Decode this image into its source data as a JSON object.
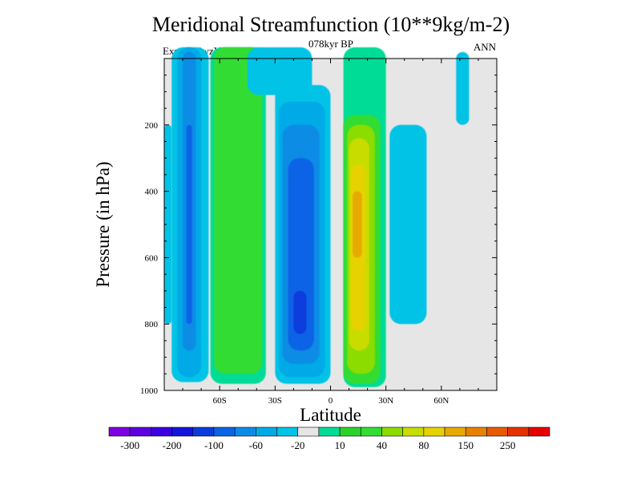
{
  "header": {
    "title": "Meridional Streamfunction (10**9kg/m-2)",
    "subtitle": "078kyr BP",
    "left_label": "Expt = tdwzY",
    "right_label": "ANN"
  },
  "chart_data": {
    "type": "heatmap",
    "xlabel": "Latitude",
    "ylabel": "Pressure (in hPa)",
    "xlim": [
      -90,
      90
    ],
    "ylim": [
      1000,
      0
    ],
    "x_ticks": [
      {
        "value": -60,
        "label": "60S"
      },
      {
        "value": -30,
        "label": "30S"
      },
      {
        "value": 0,
        "label": "0"
      },
      {
        "value": 30,
        "label": "30N"
      },
      {
        "value": 60,
        "label": "60N"
      }
    ],
    "y_ticks": [
      {
        "value": 200,
        "label": "200"
      },
      {
        "value": 400,
        "label": "400"
      },
      {
        "value": 600,
        "label": "600"
      },
      {
        "value": 800,
        "label": "800"
      },
      {
        "value": 1000,
        "label": "1000"
      }
    ],
    "background_color": "#e6e6e6",
    "colorbar": {
      "colors": [
        "#7d00e0",
        "#5f00e0",
        "#3a00e0",
        "#1414dc",
        "#0a3cdc",
        "#0a64e6",
        "#0a8ce6",
        "#00aae6",
        "#00c3e6",
        "#e6e6e6",
        "#00dc96",
        "#2ad22a",
        "#32dc32",
        "#8cdc00",
        "#c8dc00",
        "#e6d200",
        "#e6aa00",
        "#e68200",
        "#e65a00",
        "#e63200",
        "#e60000"
      ],
      "labels": [
        "-300",
        "-200",
        "-100",
        "-60",
        "-20",
        "10",
        "40",
        "80",
        "150",
        "250"
      ]
    },
    "regions": [
      {
        "lat": [
          -90,
          -86
        ],
        "p": [
          200,
          800
        ],
        "value": -10,
        "color": "#00c3e6"
      },
      {
        "lat": [
          -86,
          -66
        ],
        "p": [
          0,
          975
        ],
        "value": -20,
        "color": "#00c3e6"
      },
      {
        "lat": [
          -83,
          -70
        ],
        "p": [
          0,
          960
        ],
        "value": -40,
        "color": "#00aae6"
      },
      {
        "lat": [
          -80,
          -73
        ],
        "p": [
          0,
          880
        ],
        "value": -60,
        "color": "#0a8ce6"
      },
      {
        "lat": [
          -78,
          -75
        ],
        "p": [
          200,
          800
        ],
        "value": -80,
        "color": "#0a64e6"
      },
      {
        "lat": [
          -65,
          -35
        ],
        "p": [
          0,
          980
        ],
        "value": 10,
        "color": "#00dc96"
      },
      {
        "lat": [
          -63,
          -37
        ],
        "p": [
          0,
          950
        ],
        "value": 20,
        "color": "#32dc32"
      },
      {
        "lat": [
          -45,
          -10
        ],
        "p": [
          0,
          110
        ],
        "value": -10,
        "color": "#00c3e6"
      },
      {
        "lat": [
          -30,
          0
        ],
        "p": [
          80,
          980
        ],
        "value": -20,
        "color": "#00c3e6"
      },
      {
        "lat": [
          -28,
          -3
        ],
        "p": [
          130,
          960
        ],
        "value": -40,
        "color": "#00aae6"
      },
      {
        "lat": [
          -26,
          -6
        ],
        "p": [
          200,
          920
        ],
        "value": -60,
        "color": "#0a8ce6"
      },
      {
        "lat": [
          -23,
          -9
        ],
        "p": [
          300,
          880
        ],
        "value": -80,
        "color": "#0a64e6"
      },
      {
        "lat": [
          -20,
          -13
        ],
        "p": [
          700,
          830
        ],
        "value": -100,
        "color": "#0a3cdc"
      },
      {
        "lat": [
          7,
          30
        ],
        "p": [
          0,
          990
        ],
        "value": 10,
        "color": "#00dc96"
      },
      {
        "lat": [
          7,
          27
        ],
        "p": [
          170,
          980
        ],
        "value": 20,
        "color": "#32dc32"
      },
      {
        "lat": [
          9,
          24
        ],
        "p": [
          200,
          950
        ],
        "value": 40,
        "color": "#8cdc00"
      },
      {
        "lat": [
          10,
          21
        ],
        "p": [
          240,
          880
        ],
        "value": 60,
        "color": "#c8dc00"
      },
      {
        "lat": [
          11,
          19
        ],
        "p": [
          320,
          820
        ],
        "value": 80,
        "color": "#e6d200"
      },
      {
        "lat": [
          12,
          17
        ],
        "p": [
          400,
          600
        ],
        "value": 100,
        "color": "#e6aa00"
      },
      {
        "lat": [
          32,
          52
        ],
        "p": [
          200,
          800
        ],
        "value": -10,
        "color": "#00c3e6"
      },
      {
        "lat": [
          68,
          75
        ],
        "p": [
          0,
          200
        ],
        "value": -10,
        "color": "#00c3e6"
      }
    ]
  }
}
